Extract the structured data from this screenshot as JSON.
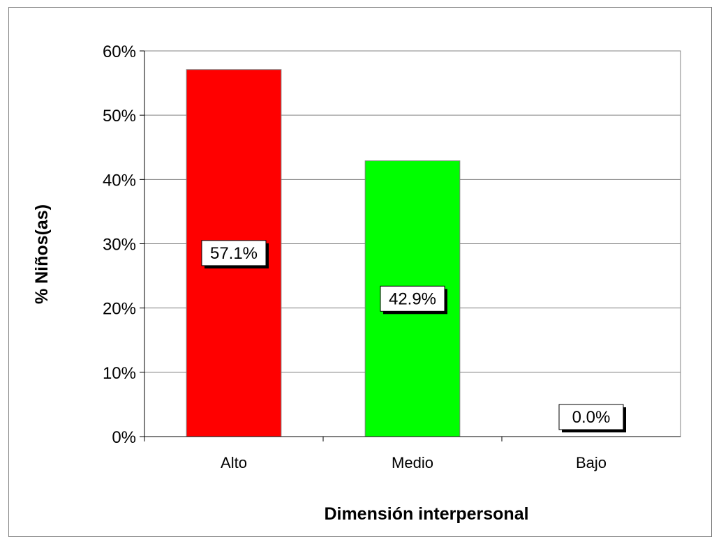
{
  "chart_data": {
    "type": "bar",
    "title": "",
    "xlabel": "Dimensión interpersonal",
    "ylabel": "% Niños(as)",
    "categories": [
      "Alto",
      "Medio",
      "Bajo"
    ],
    "values": [
      57.1,
      42.9,
      0.0
    ],
    "data_labels": [
      "57.1%",
      "42.9%",
      "0.0%"
    ],
    "bar_colors": [
      "#ff0000",
      "#00ff00",
      "#0000ff"
    ],
    "ylim": [
      0,
      60
    ],
    "yticks": [
      0,
      10,
      20,
      30,
      40,
      50,
      60
    ],
    "ytick_labels": [
      "0%",
      "10%",
      "20%",
      "30%",
      "40%",
      "50%",
      "60%"
    ],
    "grid": true,
    "legend": "none"
  }
}
